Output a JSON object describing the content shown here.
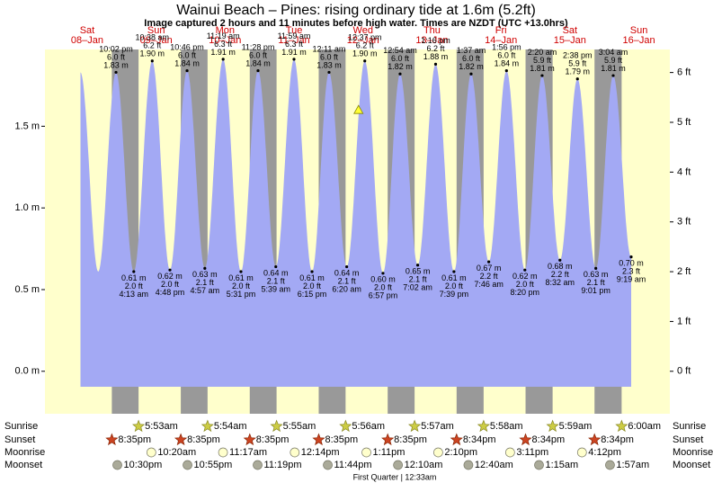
{
  "chart_data": {
    "type": "tide",
    "title": "Wainui Beach – Pines: rising  ordinary tide at 1.6m (5.2ft)",
    "subtitle": "Image captured 2 hours and 11 minutes before high water. Times are NZDT (UTC +13.0hrs)",
    "days": [
      "Sat",
      "Sun",
      "Mon",
      "Tue",
      "Wed",
      "Thu",
      "Fri",
      "Sat",
      "Sun"
    ],
    "dates": [
      "08–Jan",
      "09–Jan",
      "10–Jan",
      "11–Jan",
      "12–Jan",
      "13–Jan",
      "14–Jan",
      "15–Jan",
      "16–Jan"
    ],
    "colors": {
      "water": "#a3a9f4",
      "day": "#ffffcc",
      "night": "#999999"
    },
    "ylim": [
      -0.26,
      1.97
    ],
    "yticks": [
      {
        "value": 0,
        "label": "0.0 m"
      },
      {
        "value": 0.5,
        "label": "0.5 m"
      },
      {
        "value": 1,
        "label": "1.0 m"
      },
      {
        "value": 1.5,
        "label": "1.5 m"
      }
    ],
    "y2lim": [
      -0.853,
      6.463
    ],
    "y2ticks": [
      {
        "value": 0,
        "label": "0 ft"
      },
      {
        "value": 1,
        "label": "1 ft"
      },
      {
        "value": 2,
        "label": "2 ft"
      },
      {
        "value": 3,
        "label": "3 ft"
      },
      {
        "value": 4,
        "label": "4 ft"
      },
      {
        "value": 5,
        "label": "5 ft"
      },
      {
        "value": 6,
        "label": "6 ft"
      }
    ],
    "extremes": {
      "times": [
        "10:02 pm",
        "4:13 am",
        "10:38 am",
        "4:48 pm",
        "10:46 pm",
        "4:57 am",
        "11:19 am",
        "5:31 pm",
        "11:28 pm",
        "5:39 am",
        "11:59 am",
        "6:15 pm",
        "12:11 am",
        "6:20 am",
        "12:37 pm",
        "6:57 pm",
        "12:54 am",
        "7:02 am",
        "1:16 pm",
        "7:39 pm",
        "1:37 am",
        "7:46 am",
        "1:56 pm",
        "8:20 pm",
        "2:20 am",
        "8:32 am",
        "2:38 pm",
        "9:01 pm",
        "3:04 am",
        "9:19 am"
      ],
      "values": [
        1.83,
        0.61,
        1.9,
        0.62,
        1.84,
        0.63,
        1.91,
        0.61,
        1.84,
        0.64,
        1.91,
        0.61,
        1.83,
        0.64,
        1.9,
        0.6,
        1.82,
        0.65,
        1.88,
        0.61,
        1.82,
        0.67,
        1.84,
        0.62,
        1.81,
        0.68,
        1.79,
        0.63,
        1.81,
        0.7
      ],
      "value_labels": [
        "1.83 m",
        "0.61 m",
        "1.90 m",
        "0.62 m",
        "1.84 m",
        "0.63 m",
        "1.91 m",
        "0.61 m",
        "1.84 m",
        "0.64 m",
        "1.91 m",
        "0.61 m",
        "1.83 m",
        "0.64 m",
        "1.90 m",
        "0.60 m",
        "1.82 m",
        "0.65 m",
        "1.88 m",
        "0.61 m",
        "1.82 m",
        "0.67 m",
        "1.84 m",
        "0.62 m",
        "1.81 m",
        "0.68 m",
        "1.79 m",
        "0.63 m",
        "1.81 m",
        "0.70 m"
      ],
      "values_ft": [
        6.0,
        2.0,
        6.2,
        2.0,
        6.0,
        2.1,
        6.3,
        2.0,
        6.0,
        2.1,
        6.3,
        2.0,
        6.0,
        2.1,
        6.2,
        2.0,
        6.0,
        2.1,
        6.2,
        2.0,
        6.0,
        2.2,
        6.0,
        2.0,
        5.9,
        2.2,
        5.9,
        2.1,
        5.9,
        2.3
      ],
      "value_labels_ft": [
        "6.0 ft",
        "2.0 ft",
        "6.2 ft",
        "2.0 ft",
        "6.0 ft",
        "2.1 ft",
        "6.3 ft",
        "2.0 ft",
        "6.0 ft",
        "2.1 ft",
        "6.3 ft",
        "2.0 ft",
        "6.0 ft",
        "2.1 ft",
        "6.2 ft",
        "2.0 ft",
        "6.0 ft",
        "2.1 ft",
        "6.2 ft",
        "2.0 ft",
        "6.0 ft",
        "2.2 ft",
        "6.0 ft",
        "2.0 ft",
        "5.9 ft",
        "2.2 ft",
        "5.9 ft",
        "2.1 ft",
        "5.9 ft",
        "2.3 ft"
      ]
    },
    "current": {
      "value": 1.6,
      "day": "Wed"
    },
    "rows": [
      {
        "name": "Sunrise",
        "times": [
          null,
          "5:53am",
          "5:54am",
          "5:55am",
          "5:56am",
          "5:57am",
          "5:58am",
          "5:59am",
          "6:00am"
        ]
      },
      {
        "name": "Sunset",
        "times": [
          "8:35pm",
          "8:35pm",
          "8:35pm",
          "8:35pm",
          "8:35pm",
          "8:34pm",
          "8:34pm",
          "8:34pm",
          null
        ]
      },
      {
        "name": "Moonrise",
        "times": [
          null,
          "10:20am",
          "11:17am",
          "12:14pm",
          "1:11pm",
          "2:10pm",
          "3:11pm",
          "4:12pm",
          null
        ]
      },
      {
        "name": "Moonset",
        "times": [
          "10:30pm",
          "10:55pm",
          "11:19pm",
          "11:44pm",
          null,
          "12:10am",
          "12:40am",
          "1:15am",
          "1:57am"
        ]
      }
    ],
    "moon_phase": "First Quarter | 12:33am"
  }
}
